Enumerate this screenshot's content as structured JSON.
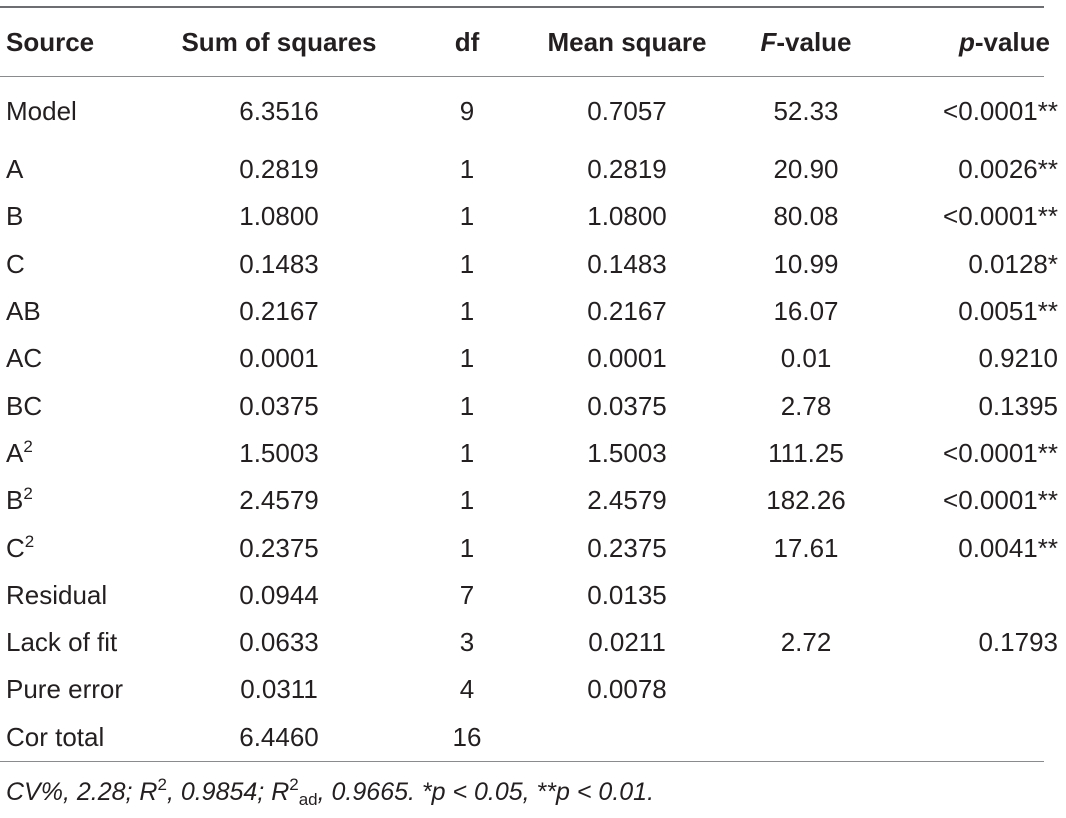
{
  "table": {
    "headers": {
      "source": "Source",
      "sum_of_squares": "Sum of squares",
      "df": "df",
      "mean_square": "Mean square",
      "f_value_letter": "F",
      "f_value_rest": "-value",
      "p_value_letter": "p",
      "p_value_rest": "-value"
    },
    "rows": [
      {
        "source": "Model",
        "source_sup": "",
        "ss": "6.3516",
        "df": "9",
        "ms": "0.7057",
        "f": "52.33",
        "p": "<0.0001**"
      },
      {
        "source": "A",
        "source_sup": "",
        "ss": "0.2819",
        "df": "1",
        "ms": "0.2819",
        "f": "20.90",
        "p": "0.0026**"
      },
      {
        "source": "B",
        "source_sup": "",
        "ss": "1.0800",
        "df": "1",
        "ms": "1.0800",
        "f": "80.08",
        "p": "<0.0001**"
      },
      {
        "source": "C",
        "source_sup": "",
        "ss": "0.1483",
        "df": "1",
        "ms": "0.1483",
        "f": "10.99",
        "p": "0.0128*"
      },
      {
        "source": "AB",
        "source_sup": "",
        "ss": "0.2167",
        "df": "1",
        "ms": "0.2167",
        "f": "16.07",
        "p": "0.0051**"
      },
      {
        "source": "AC",
        "source_sup": "",
        "ss": "0.0001",
        "df": "1",
        "ms": "0.0001",
        "f": "0.01",
        "p": "0.9210"
      },
      {
        "source": "BC",
        "source_sup": "",
        "ss": "0.0375",
        "df": "1",
        "ms": "0.0375",
        "f": "2.78",
        "p": "0.1395"
      },
      {
        "source": "A",
        "source_sup": "2",
        "ss": "1.5003",
        "df": "1",
        "ms": "1.5003",
        "f": "111.25",
        "p": "<0.0001**"
      },
      {
        "source": "B",
        "source_sup": "2",
        "ss": "2.4579",
        "df": "1",
        "ms": "2.4579",
        "f": "182.26",
        "p": "<0.0001**"
      },
      {
        "source": "C",
        "source_sup": "2",
        "ss": "0.2375",
        "df": "1",
        "ms": "0.2375",
        "f": "17.61",
        "p": "0.0041**"
      },
      {
        "source": "Residual",
        "source_sup": "",
        "ss": "0.0944",
        "df": "7",
        "ms": "0.0135",
        "f": "",
        "p": ""
      },
      {
        "source": "Lack of fit",
        "source_sup": "",
        "ss": "0.0633",
        "df": "3",
        "ms": "0.0211",
        "f": "2.72",
        "p": "0.1793"
      },
      {
        "source": "Pure error",
        "source_sup": "",
        "ss": "0.0311",
        "df": "4",
        "ms": "0.0078",
        "f": "",
        "p": ""
      },
      {
        "source": "Cor total",
        "source_sup": "",
        "ss": "6.4460",
        "df": "16",
        "ms": "",
        "f": "",
        "p": ""
      }
    ]
  },
  "footnote": {
    "cv": "CV%, 2.28; ",
    "r2_letter": "R",
    "r2_sup": "2",
    "r2_value": ", 0.9854; ",
    "r2adj_letter": "R",
    "r2adj_sup": "2",
    "r2adj_sub": "ad",
    "r2adj_value": ", 0.9665. *p < 0.05, **p < 0.01."
  }
}
